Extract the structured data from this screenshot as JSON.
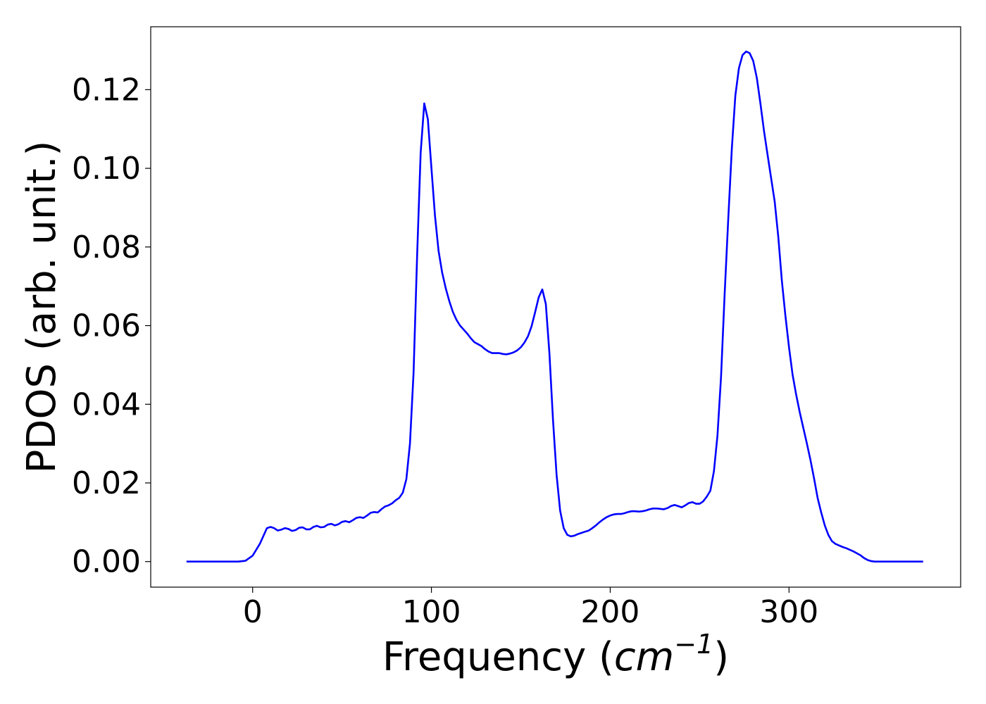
{
  "chart_data": {
    "type": "line",
    "title": "",
    "xlabel": "Frequency",
    "xlabel_unit_base": "cm",
    "xlabel_unit_exp": "−1",
    "ylabel": "PDOS (arb. unit.)",
    "xlim": [
      -57,
      396
    ],
    "ylim": [
      -0.0065,
      0.136
    ],
    "grid": false,
    "legend": "none",
    "line_color": "#0000ff",
    "x_ticks": [
      0,
      100,
      200,
      300
    ],
    "x_tick_labels": [
      "0",
      "100",
      "200",
      "300"
    ],
    "y_ticks": [
      0.0,
      0.02,
      0.04,
      0.06,
      0.08,
      0.1,
      0.12
    ],
    "y_tick_labels": [
      "0.00",
      "0.02",
      "0.04",
      "0.06",
      "0.08",
      "0.10",
      "0.12"
    ],
    "series": [
      {
        "points": [
          [
            -37,
            0
          ],
          [
            -20,
            0
          ],
          [
            -8,
            0
          ],
          [
            -4,
            0.0002
          ],
          [
            0,
            0.0015
          ],
          [
            4,
            0.0045
          ],
          [
            8,
            0.0085
          ],
          [
            10,
            0.0088
          ],
          [
            12,
            0.0085
          ],
          [
            14,
            0.0079
          ],
          [
            16,
            0.0081
          ],
          [
            18,
            0.0085
          ],
          [
            20,
            0.0083
          ],
          [
            22,
            0.0078
          ],
          [
            24,
            0.008
          ],
          [
            26,
            0.0086
          ],
          [
            28,
            0.0087
          ],
          [
            30,
            0.0082
          ],
          [
            32,
            0.0082
          ],
          [
            34,
            0.0088
          ],
          [
            36,
            0.0091
          ],
          [
            38,
            0.0087
          ],
          [
            40,
            0.0088
          ],
          [
            42,
            0.0094
          ],
          [
            44,
            0.0096
          ],
          [
            46,
            0.0092
          ],
          [
            48,
            0.0095
          ],
          [
            50,
            0.0101
          ],
          [
            52,
            0.0103
          ],
          [
            54,
            0.01
          ],
          [
            56,
            0.0105
          ],
          [
            58,
            0.0111
          ],
          [
            60,
            0.0113
          ],
          [
            62,
            0.0111
          ],
          [
            64,
            0.0117
          ],
          [
            66,
            0.0124
          ],
          [
            68,
            0.0126
          ],
          [
            70,
            0.0125
          ],
          [
            72,
            0.0133
          ],
          [
            74,
            0.014
          ],
          [
            76,
            0.0143
          ],
          [
            78,
            0.0148
          ],
          [
            80,
            0.0156
          ],
          [
            82,
            0.0162
          ],
          [
            84,
            0.0175
          ],
          [
            86,
            0.021
          ],
          [
            88,
            0.03
          ],
          [
            90,
            0.048
          ],
          [
            92,
            0.078
          ],
          [
            94,
            0.104
          ],
          [
            96,
            0.1165
          ],
          [
            98,
            0.1125
          ],
          [
            100,
            0.1
          ],
          [
            102,
            0.088
          ],
          [
            104,
            0.079
          ],
          [
            106,
            0.0735
          ],
          [
            108,
            0.0695
          ],
          [
            110,
            0.0662
          ],
          [
            112,
            0.0635
          ],
          [
            114,
            0.0615
          ],
          [
            116,
            0.06
          ],
          [
            118,
            0.059
          ],
          [
            120,
            0.058
          ],
          [
            122,
            0.0568
          ],
          [
            124,
            0.0558
          ],
          [
            126,
            0.0553
          ],
          [
            128,
            0.0548
          ],
          [
            130,
            0.054
          ],
          [
            132,
            0.0534
          ],
          [
            134,
            0.053
          ],
          [
            136,
            0.053
          ],
          [
            138,
            0.053
          ],
          [
            140,
            0.0528
          ],
          [
            142,
            0.0527
          ],
          [
            144,
            0.0529
          ],
          [
            146,
            0.0532
          ],
          [
            148,
            0.0537
          ],
          [
            150,
            0.0545
          ],
          [
            152,
            0.0557
          ],
          [
            154,
            0.0573
          ],
          [
            156,
            0.0598
          ],
          [
            158,
            0.0634
          ],
          [
            160,
            0.0672
          ],
          [
            162,
            0.0692
          ],
          [
            164,
            0.0655
          ],
          [
            166,
            0.053
          ],
          [
            168,
            0.036
          ],
          [
            170,
            0.022
          ],
          [
            172,
            0.013
          ],
          [
            174,
            0.0085
          ],
          [
            176,
            0.0068
          ],
          [
            178,
            0.0064
          ],
          [
            180,
            0.0066
          ],
          [
            182,
            0.007
          ],
          [
            184,
            0.0073
          ],
          [
            186,
            0.0076
          ],
          [
            188,
            0.0079
          ],
          [
            190,
            0.0085
          ],
          [
            192,
            0.0092
          ],
          [
            194,
            0.01
          ],
          [
            196,
            0.0107
          ],
          [
            198,
            0.0113
          ],
          [
            200,
            0.0117
          ],
          [
            202,
            0.012
          ],
          [
            204,
            0.0121
          ],
          [
            206,
            0.0121
          ],
          [
            208,
            0.0123
          ],
          [
            210,
            0.0126
          ],
          [
            212,
            0.0128
          ],
          [
            214,
            0.0128
          ],
          [
            216,
            0.0127
          ],
          [
            218,
            0.0128
          ],
          [
            220,
            0.013
          ],
          [
            222,
            0.0133
          ],
          [
            224,
            0.0135
          ],
          [
            226,
            0.0135
          ],
          [
            228,
            0.0134
          ],
          [
            230,
            0.0133
          ],
          [
            232,
            0.0136
          ],
          [
            234,
            0.0141
          ],
          [
            236,
            0.0144
          ],
          [
            238,
            0.0141
          ],
          [
            240,
            0.0138
          ],
          [
            242,
            0.0143
          ],
          [
            244,
            0.0149
          ],
          [
            246,
            0.0151
          ],
          [
            248,
            0.0147
          ],
          [
            250,
            0.0147
          ],
          [
            252,
            0.0153
          ],
          [
            254,
            0.0165
          ],
          [
            256,
            0.018
          ],
          [
            258,
            0.023
          ],
          [
            260,
            0.032
          ],
          [
            262,
            0.047
          ],
          [
            264,
            0.068
          ],
          [
            266,
            0.087
          ],
          [
            268,
            0.105
          ],
          [
            270,
            0.1185
          ],
          [
            272,
            0.1255
          ],
          [
            274,
            0.1288
          ],
          [
            276,
            0.1297
          ],
          [
            278,
            0.1293
          ],
          [
            280,
            0.1273
          ],
          [
            282,
            0.123
          ],
          [
            284,
            0.1165
          ],
          [
            286,
            0.1095
          ],
          [
            288,
            0.1035
          ],
          [
            290,
            0.0975
          ],
          [
            292,
            0.0915
          ],
          [
            294,
            0.0825
          ],
          [
            296,
            0.0715
          ],
          [
            298,
            0.0625
          ],
          [
            300,
            0.0545
          ],
          [
            302,
            0.0475
          ],
          [
            304,
            0.0425
          ],
          [
            306,
            0.038
          ],
          [
            308,
            0.034
          ],
          [
            310,
            0.03
          ],
          [
            312,
            0.0258
          ],
          [
            314,
            0.0212
          ],
          [
            316,
            0.0162
          ],
          [
            318,
            0.0125
          ],
          [
            320,
            0.0092
          ],
          [
            322,
            0.0068
          ],
          [
            324,
            0.0052
          ],
          [
            326,
            0.0045
          ],
          [
            328,
            0.0041
          ],
          [
            330,
            0.0037
          ],
          [
            332,
            0.0034
          ],
          [
            334,
            0.003
          ],
          [
            336,
            0.0026
          ],
          [
            338,
            0.0021
          ],
          [
            340,
            0.0016
          ],
          [
            342,
            0.0009
          ],
          [
            344,
            0.0004
          ],
          [
            346,
            0.0001
          ],
          [
            348,
            0
          ],
          [
            356,
            0
          ],
          [
            375,
            0
          ]
        ]
      }
    ]
  }
}
